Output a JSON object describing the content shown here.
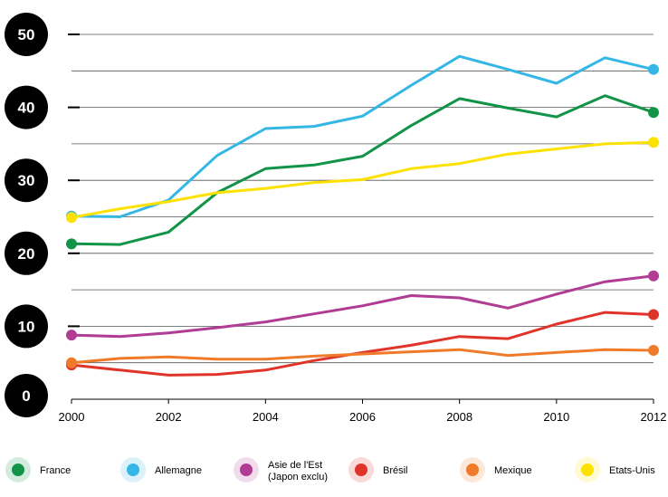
{
  "chart_data": {
    "type": "line",
    "title": "",
    "xlabel": "",
    "ylabel": "",
    "x": [
      2000,
      2001,
      2002,
      2003,
      2004,
      2005,
      2006,
      2007,
      2008,
      2009,
      2010,
      2011,
      2012
    ],
    "xlim": [
      2000,
      2012
    ],
    "ylim": [
      0,
      50
    ],
    "x_ticks": [
      2000,
      2002,
      2004,
      2006,
      2008,
      2010,
      2012
    ],
    "x_tick_labels": [
      "2000",
      "2002",
      "2004",
      "2006",
      "2008",
      "2010",
      "2012"
    ],
    "y_ticks": [
      0,
      10,
      20,
      30,
      40,
      50
    ],
    "y_tick_labels": [
      "0",
      "10",
      "20",
      "30",
      "40",
      "50"
    ],
    "grid": true,
    "legend_position": "bottom",
    "series": [
      {
        "name": "France",
        "color": "#119447",
        "values": [
          21.3,
          21.2,
          22.9,
          28.3,
          31.6,
          32.1,
          33.3,
          37.5,
          41.2,
          39.9,
          38.7,
          41.6,
          39.3
        ]
      },
      {
        "name": "Allemagne",
        "color": "#35b7e6",
        "values": [
          25.1,
          25.0,
          27.3,
          33.4,
          37.1,
          37.4,
          38.8,
          43.0,
          47.0,
          45.2,
          43.3,
          46.8,
          45.2
        ]
      },
      {
        "name": "Asie de l'Est\n(Japon exclu)",
        "color": "#b03c93",
        "values": [
          8.8,
          8.6,
          9.1,
          9.8,
          10.6,
          11.7,
          12.8,
          14.2,
          13.9,
          12.5,
          14.4,
          16.1,
          16.9
        ]
      },
      {
        "name": "Brésil",
        "color": "#e0342b",
        "values": [
          4.7,
          4.0,
          3.3,
          3.4,
          4.0,
          5.3,
          6.4,
          7.4,
          8.6,
          8.3,
          10.3,
          11.9,
          11.6
        ]
      },
      {
        "name": "Mexique",
        "color": "#ef7b2a",
        "values": [
          5.0,
          5.6,
          5.8,
          5.5,
          5.5,
          5.9,
          6.2,
          6.5,
          6.8,
          6.0,
          6.4,
          6.8,
          6.7
        ]
      },
      {
        "name": "Etats-Unis",
        "color": "#fde100",
        "values": [
          24.9,
          26.1,
          27.1,
          28.3,
          28.9,
          29.7,
          30.1,
          31.6,
          32.3,
          33.6,
          34.3,
          35.0,
          35.2
        ]
      }
    ]
  }
}
